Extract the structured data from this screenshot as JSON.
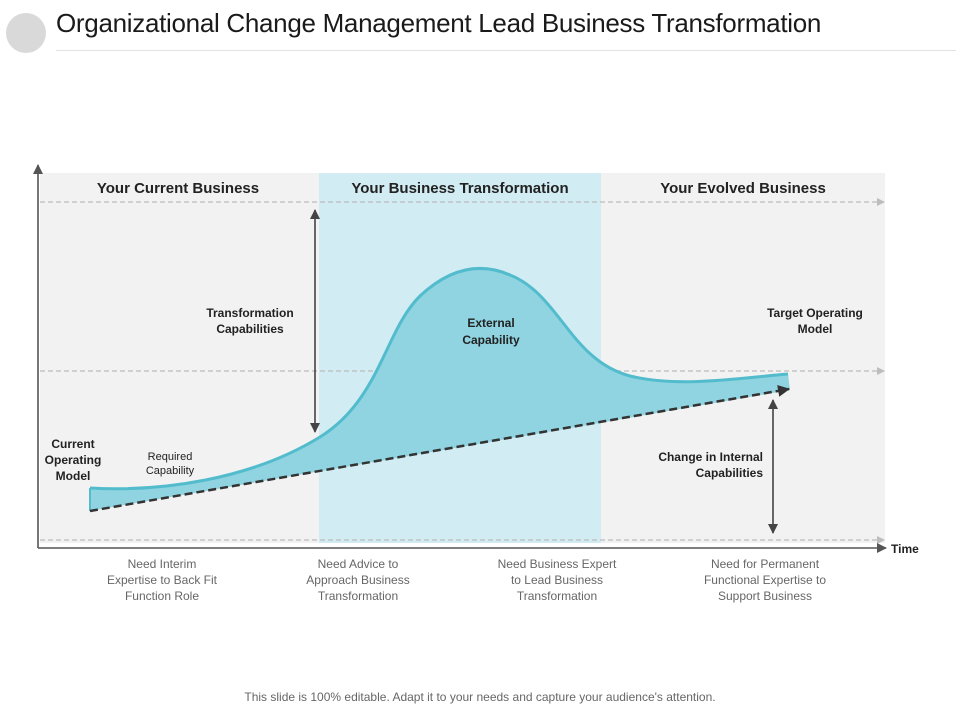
{
  "title": "Organizational Change Management Lead Business Transformation",
  "footer": "This slide is 100% editable. Adapt it to your needs and capture your audience's attention.",
  "columns": {
    "current": "Your Current Business",
    "transformation": "Your Business Transformation",
    "evolved": "Your Evolved Business"
  },
  "labels": {
    "transformation_capabilities": [
      "Transformation",
      "Capabilities"
    ],
    "external_capability": [
      "External",
      "Capability"
    ],
    "target_operating_model": [
      "Target Operating",
      "Model"
    ],
    "current_operating_model": [
      "Current",
      "Operating",
      "Model"
    ],
    "required_capability": [
      "Required",
      "Capability"
    ],
    "change_internal": [
      "Change in Internal",
      "Capabilities"
    ],
    "time_axis": "Time"
  },
  "needs": [
    [
      "Need Interim",
      "Expertise to Back Fit",
      "Function Role"
    ],
    [
      "Need Advice to",
      "Approach Business",
      "Transformation"
    ],
    [
      "Need Business Expert",
      "to Lead Business",
      "Transformation"
    ],
    [
      "Need for Permanent",
      "Functional Expertise to",
      "Support Business"
    ]
  ],
  "colors": {
    "panel_gray": "#f2f2f2",
    "panel_blue": "#d1ecf2",
    "curve_fill": "#8fd4e0",
    "curve_stroke": "#52bccd",
    "dashed": "#bdbdbd",
    "trend": "#333333"
  }
}
